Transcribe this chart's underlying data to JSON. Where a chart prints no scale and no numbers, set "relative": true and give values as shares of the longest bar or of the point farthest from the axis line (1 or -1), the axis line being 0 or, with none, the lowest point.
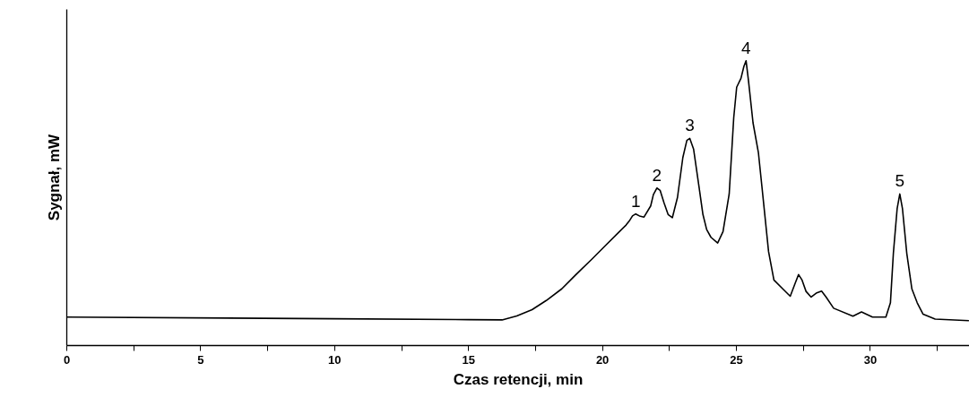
{
  "chart_data": {
    "type": "line",
    "relative": true,
    "xlabel": "Czas retencji, min",
    "ylabel": "Sygnał, mW",
    "color": "#000000",
    "line_style": "solid",
    "xlim": [
      0,
      33.7
    ],
    "xticks": [
      0,
      {
        "value": 2.5,
        "label": null
      },
      5,
      {
        "value": 7.5,
        "label": null
      },
      10,
      {
        "value": 12.5,
        "label": null
      },
      15,
      {
        "value": 17.5,
        "label": null
      },
      20,
      {
        "value": 22.5,
        "label": null
      },
      25,
      {
        "value": 27.5,
        "label": null
      },
      30,
      {
        "value": 32.5,
        "label": null
      }
    ],
    "x": [
      0,
      10,
      15,
      16.25,
      16.8,
      17.37,
      17.9,
      18.48,
      19.0,
      19.6,
      20.1,
      20.6,
      20.88,
      21.0,
      21.12,
      21.24,
      21.38,
      21.55,
      21.8,
      21.9,
      22.03,
      22.15,
      22.3,
      22.45,
      22.61,
      22.8,
      23.0,
      23.15,
      23.26,
      23.4,
      23.6,
      23.75,
      23.89,
      24.05,
      24.3,
      24.5,
      24.73,
      24.9,
      25.01,
      25.17,
      25.28,
      25.36,
      25.45,
      25.62,
      25.82,
      25.95,
      26.06,
      26.2,
      26.4,
      26.73,
      27.01,
      27.2,
      27.32,
      27.45,
      27.6,
      27.79,
      28.0,
      28.18,
      28.35,
      28.63,
      29.35,
      29.67,
      30.08,
      30.58,
      30.75,
      30.86,
      31.0,
      31.1,
      31.2,
      31.36,
      31.55,
      31.75,
      31.97,
      32.42,
      33.68
    ],
    "values": [
      0.1,
      0.094,
      0.091,
      0.09,
      0.104,
      0.126,
      0.158,
      0.199,
      0.248,
      0.303,
      0.35,
      0.397,
      0.423,
      0.437,
      0.455,
      0.462,
      0.455,
      0.451,
      0.49,
      0.53,
      0.553,
      0.545,
      0.5,
      0.46,
      0.449,
      0.52,
      0.66,
      0.72,
      0.727,
      0.69,
      0.56,
      0.46,
      0.407,
      0.38,
      0.36,
      0.4,
      0.532,
      0.8,
      0.907,
      0.938,
      0.98,
      1.0,
      0.93,
      0.782,
      0.678,
      0.56,
      0.459,
      0.33,
      0.23,
      0.199,
      0.173,
      0.22,
      0.249,
      0.23,
      0.19,
      0.17,
      0.185,
      0.191,
      0.17,
      0.131,
      0.103,
      0.118,
      0.1,
      0.1,
      0.15,
      0.324,
      0.48,
      0.532,
      0.48,
      0.324,
      0.199,
      0.15,
      0.11,
      0.093,
      0.0875
    ],
    "annotations": [
      {
        "text": "1",
        "x": 21.24,
        "y": 0.462
      },
      {
        "text": "2",
        "x": 22.03,
        "y": 0.553
      },
      {
        "text": "3",
        "x": 23.26,
        "y": 0.727
      },
      {
        "text": "4",
        "x": 25.36,
        "y": 1.0
      },
      {
        "text": "5",
        "x": 31.1,
        "y": 0.532
      }
    ]
  }
}
